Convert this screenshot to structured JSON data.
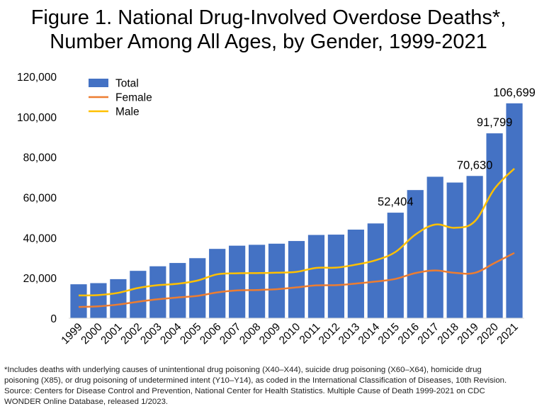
{
  "title_line1": "Figure 1. National Drug-Involved Overdose Deaths*,",
  "title_line2": "Number Among All Ages, by Gender, 1999-2021",
  "footnote_lines": [
    "*Includes deaths with underlying causes of unintentional drug poisoning (X40–X44), suicide drug poisoning (X60–X64), homicide drug",
    "poisoning (X85), or drug poisoning of undetermined intent (Y10–Y14), as coded in the International Classification of Diseases, 10th Revision.",
    "Source: Centers for Disease Control and Prevention, National Center for Health Statistics. Multiple Cause of Death 1999-2021 on CDC",
    "WONDER Online Database, released 1/2023."
  ],
  "colors": {
    "total": "#4472C4",
    "female": "#ED7D31",
    "male": "#FFC000"
  },
  "chart_data": {
    "type": "bar",
    "categories": [
      "1999",
      "2000",
      "2001",
      "2002",
      "2003",
      "2004",
      "2005",
      "2006",
      "2007",
      "2008",
      "2009",
      "2010",
      "2011",
      "2012",
      "2013",
      "2014",
      "2015",
      "2016",
      "2017",
      "2018",
      "2019",
      "2020",
      "2021"
    ],
    "ylim": [
      0,
      120000
    ],
    "yticks": [
      0,
      20000,
      40000,
      60000,
      80000,
      100000,
      120000
    ],
    "ytick_labels": [
      "0",
      "20,000",
      "40,000",
      "60,000",
      "80,000",
      "100,000",
      "120,000"
    ],
    "grid": false,
    "legend_position": "top-left",
    "series": [
      {
        "name": "Total",
        "type": "bar",
        "values": [
          16849,
          17415,
          19394,
          23518,
          25785,
          27424,
          29813,
          34425,
          36010,
          36450,
          37004,
          38329,
          41340,
          41502,
          43982,
          47055,
          52404,
          63632,
          70237,
          67367,
          70630,
          91799,
          106699
        ]
      },
      {
        "name": "Female",
        "type": "line",
        "values": [
          5591,
          5900,
          6800,
          8200,
          9400,
          10300,
          11100,
          12800,
          13800,
          14000,
          14400,
          15300,
          16300,
          16400,
          17200,
          18200,
          19500,
          22400,
          23700,
          22500,
          22500,
          27400,
          32400
        ]
      },
      {
        "name": "Male",
        "type": "line",
        "values": [
          11300,
          11500,
          12600,
          15000,
          16400,
          17100,
          18700,
          21800,
          22300,
          22400,
          22600,
          23000,
          25000,
          25100,
          26600,
          28800,
          32900,
          41500,
          46500,
          44900,
          48100,
          64300,
          74300
        ]
      }
    ],
    "data_labels": [
      {
        "category": "2015",
        "text": "52,404"
      },
      {
        "category": "2019",
        "text": "70,630"
      },
      {
        "category": "2020",
        "text": "91,799"
      },
      {
        "category": "2021",
        "text": "106,699"
      }
    ]
  }
}
